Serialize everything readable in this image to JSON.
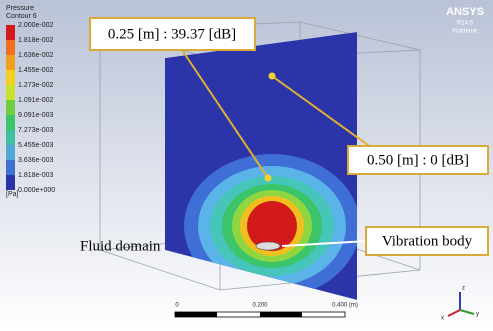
{
  "logo": {
    "name": "ANSYS",
    "version": "R14.5",
    "edition": "Academic"
  },
  "legend": {
    "title": "Pressure",
    "subtitle": "Contour 6",
    "labels": [
      "2.000e-002",
      "1.818e-002",
      "1.636e-002",
      "1.455e-002",
      "1.273e-002",
      "1.091e-002",
      "9.091e-003",
      "7.273e-003",
      "5.455e-003",
      "3.636e-003",
      "1.818e-003",
      "0.000e+000"
    ],
    "unit": "[Pa]"
  },
  "annotations": {
    "near": "0.25 [m] : 39.37 [dB]",
    "far": "0.50 [m] : 0 [dB]",
    "domain": "Fluid domain",
    "body": "Vibration body"
  },
  "scale_bar": {
    "labels": [
      "0",
      "0.200",
      "0.400 (m)"
    ]
  },
  "axes": {
    "x": "x",
    "y": "y",
    "z": "z"
  }
}
